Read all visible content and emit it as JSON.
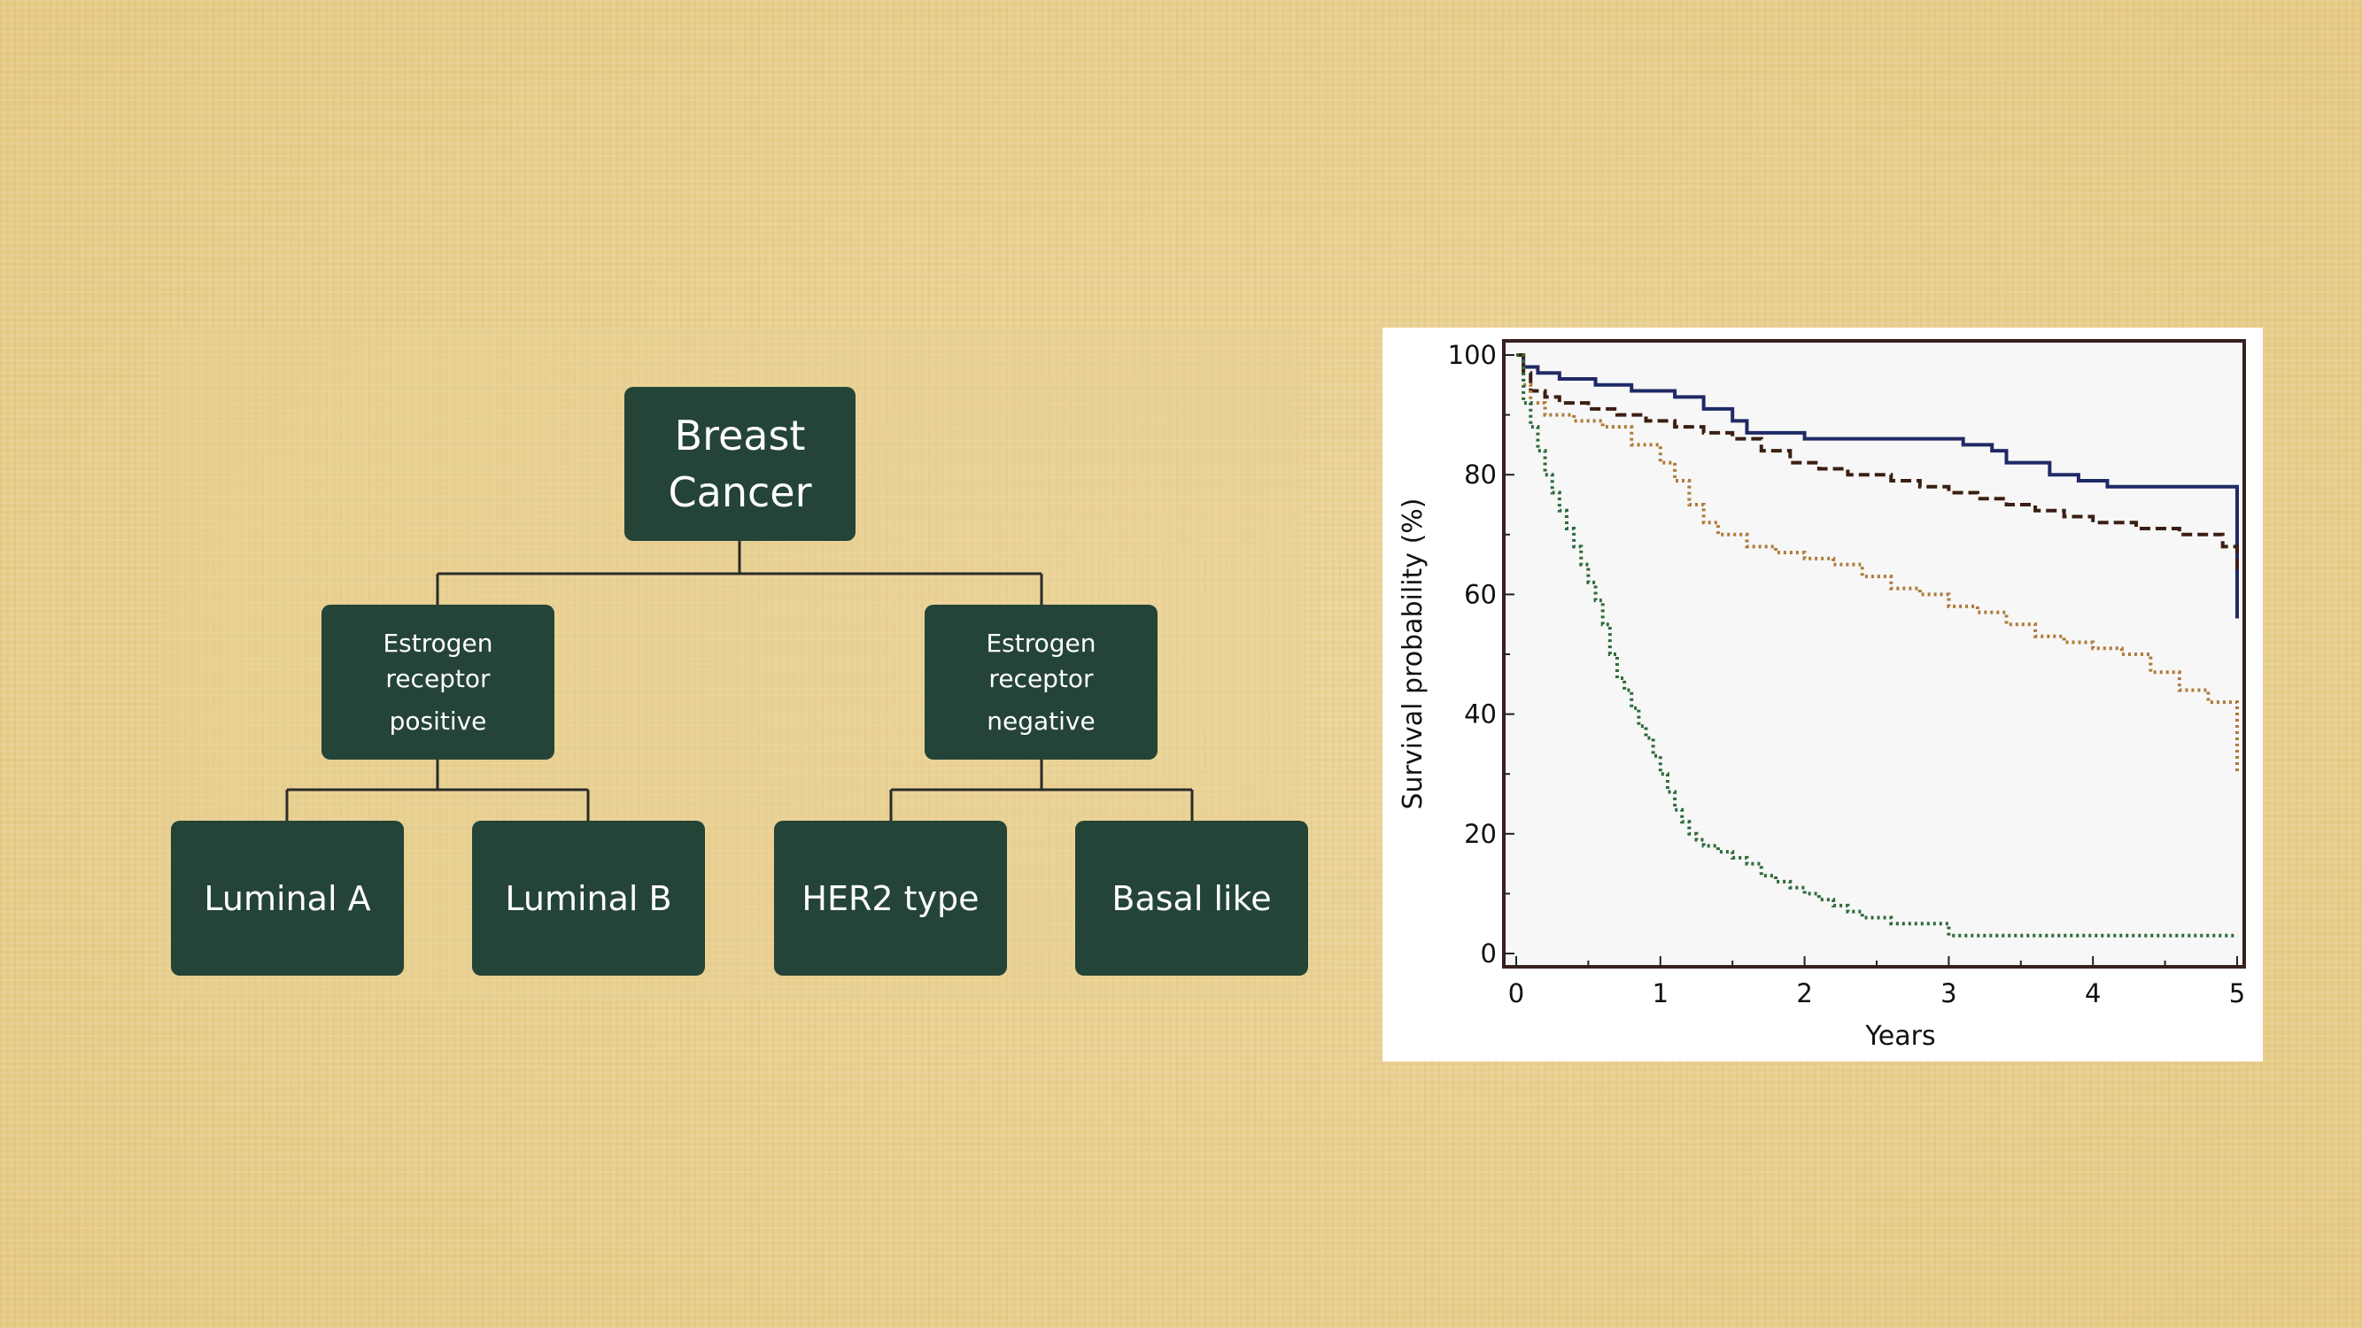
{
  "diagram": {
    "root": {
      "line1": "Breast",
      "line2": "Cancer"
    },
    "er_positive": {
      "line1": "Estrogen",
      "line2": "receptor",
      "line3": "positive"
    },
    "er_negative": {
      "line1": "Estrogen",
      "line2": "receptor",
      "line3": "negative"
    },
    "leaves": {
      "luminal_a": "Luminal A",
      "luminal_b": "Luminal B",
      "her2": "HER2 type",
      "basal": "Basal like"
    },
    "colors": {
      "node_fill": "#244437",
      "node_text": "#ffffff",
      "connector": "#2b2b2b"
    }
  },
  "chart_data": {
    "type": "line",
    "xlabel": "Years",
    "ylabel": "Survival probability (%)",
    "xlim": [
      0,
      5
    ],
    "ylim": [
      0,
      100
    ],
    "xticks": [
      "0",
      "1",
      "2",
      "3",
      "4",
      "5"
    ],
    "yticks": [
      "0",
      "20",
      "40",
      "60",
      "80",
      "100"
    ],
    "grid": false,
    "legend": "none",
    "series": [
      {
        "color": "#1f2a66",
        "style": "solid",
        "x": [
          0,
          0.05,
          0.15,
          0.3,
          0.55,
          0.8,
          1.1,
          1.3,
          1.5,
          1.6,
          2.0,
          2.5,
          3.0,
          3.1,
          3.3,
          3.4,
          3.7,
          3.9,
          4.1,
          4.3,
          4.6,
          4.8,
          5.0,
          5.0
        ],
        "y": [
          100,
          98,
          97,
          96,
          95,
          94,
          93,
          91,
          89,
          87,
          86,
          86,
          86,
          85,
          84,
          82,
          80,
          79,
          78,
          78,
          78,
          78,
          77,
          56
        ]
      },
      {
        "color": "#3a1f12",
        "style": "dashed",
        "x": [
          0,
          0.05,
          0.1,
          0.2,
          0.3,
          0.5,
          0.7,
          0.9,
          1.1,
          1.3,
          1.5,
          1.7,
          1.9,
          2.1,
          2.3,
          2.6,
          2.8,
          3.0,
          3.2,
          3.4,
          3.6,
          3.8,
          4.0,
          4.3,
          4.6,
          4.9,
          5.0
        ],
        "y": [
          100,
          97,
          94,
          93,
          92,
          91,
          90,
          89,
          88,
          87,
          86,
          84,
          82,
          81,
          80,
          79,
          78,
          77,
          76,
          75,
          74,
          73,
          72,
          71,
          70,
          68,
          64
        ]
      },
      {
        "color": "#b07a3a",
        "style": "dotted",
        "x": [
          0,
          0.05,
          0.1,
          0.2,
          0.4,
          0.6,
          0.8,
          1.0,
          1.1,
          1.2,
          1.3,
          1.4,
          1.6,
          1.8,
          2.0,
          2.2,
          2.4,
          2.6,
          2.8,
          3.0,
          3.2,
          3.4,
          3.6,
          3.8,
          4.0,
          4.2,
          4.4,
          4.6,
          4.8,
          5.0,
          5.0
        ],
        "y": [
          100,
          95,
          92,
          90,
          89,
          88,
          85,
          82,
          79,
          75,
          72,
          70,
          68,
          67,
          66,
          65,
          63,
          61,
          60,
          58,
          57,
          55,
          53,
          52,
          51,
          50,
          47,
          44,
          42,
          42,
          30
        ]
      },
      {
        "color": "#2e6a3a",
        "style": "dotted",
        "x": [
          0,
          0.05,
          0.1,
          0.15,
          0.2,
          0.25,
          0.3,
          0.35,
          0.4,
          0.45,
          0.5,
          0.55,
          0.6,
          0.65,
          0.7,
          0.75,
          0.8,
          0.85,
          0.9,
          0.95,
          1.0,
          1.05,
          1.1,
          1.15,
          1.2,
          1.25,
          1.3,
          1.4,
          1.5,
          1.6,
          1.7,
          1.8,
          1.9,
          2.0,
          2.1,
          2.2,
          2.3,
          2.4,
          2.6,
          2.8,
          3.0,
          3.5,
          4.0,
          4.5,
          5.0
        ],
        "y": [
          100,
          92,
          88,
          84,
          80,
          77,
          74,
          71,
          68,
          65,
          62,
          59,
          55,
          50,
          46,
          44,
          41,
          38,
          36,
          33,
          30,
          27,
          24,
          22,
          20,
          19,
          18,
          17,
          16,
          15,
          13,
          12,
          11,
          10,
          9,
          8,
          7,
          6,
          5,
          5,
          3,
          3,
          3,
          3,
          3
        ]
      }
    ]
  }
}
